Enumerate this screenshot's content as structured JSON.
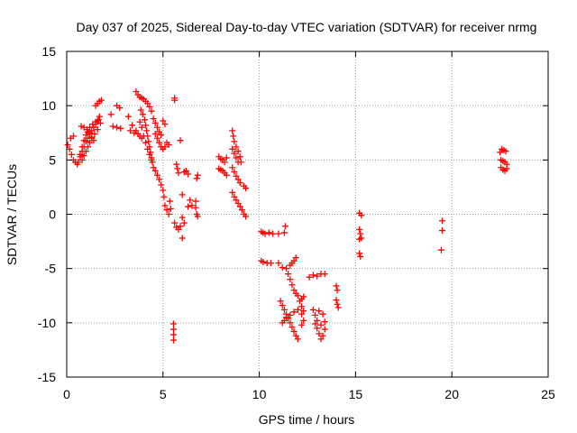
{
  "chart_data": {
    "type": "scatter",
    "title": "Day 037 of 2025, Sidereal Day-to-day VTEC variation (SDTVAR) for receiver nrmg",
    "xlabel": "GPS time / hours",
    "ylabel": "SDTVAR / TECUs",
    "xlim": [
      0,
      25
    ],
    "ylim": [
      -15,
      15
    ],
    "xticks": [
      0,
      5,
      10,
      15,
      20,
      25
    ],
    "yticks": [
      -15,
      -10,
      -5,
      0,
      5,
      10,
      15
    ],
    "xtick_labels": [
      "0",
      "5",
      "10",
      "15",
      "20",
      "25"
    ],
    "ytick_labels": [
      "-15",
      "-10",
      "-5",
      "0",
      "5",
      "10",
      "15"
    ],
    "grid": true,
    "marker": "plus",
    "color": "#ff0000",
    "points": [
      [
        0.05,
        6.4
      ],
      [
        0.15,
        6.0
      ],
      [
        0.25,
        5.5
      ],
      [
        0.35,
        5.0
      ],
      [
        0.45,
        4.8
      ],
      [
        0.55,
        4.6
      ],
      [
        0.2,
        7.0
      ],
      [
        0.35,
        7.2
      ],
      [
        0.6,
        4.8
      ],
      [
        0.7,
        5.3
      ],
      [
        0.8,
        5.8
      ],
      [
        0.9,
        6.2
      ],
      [
        1.0,
        6.7
      ],
      [
        1.1,
        7.0
      ],
      [
        1.2,
        7.4
      ],
      [
        1.3,
        7.7
      ],
      [
        1.4,
        8.0
      ],
      [
        1.5,
        8.3
      ],
      [
        1.6,
        8.6
      ],
      [
        1.7,
        9.0
      ],
      [
        0.7,
        5.5
      ],
      [
        0.8,
        6.2
      ],
      [
        0.9,
        6.8
      ],
      [
        1.0,
        7.3
      ],
      [
        1.1,
        7.6
      ],
      [
        1.2,
        8.0
      ],
      [
        1.35,
        8.3
      ],
      [
        1.5,
        8.5
      ],
      [
        1.65,
        8.7
      ],
      [
        1.75,
        8.4
      ],
      [
        0.8,
        5.0
      ],
      [
        0.9,
        5.4
      ],
      [
        1.0,
        5.8
      ],
      [
        1.1,
        6.2
      ],
      [
        1.2,
        6.6
      ],
      [
        1.3,
        7.0
      ],
      [
        1.45,
        7.4
      ],
      [
        1.6,
        7.8
      ],
      [
        0.75,
        8.1
      ],
      [
        0.9,
        8.0
      ],
      [
        1.05,
        7.8
      ],
      [
        1.2,
        7.5
      ],
      [
        1.3,
        7.1
      ],
      [
        1.4,
        6.8
      ],
      [
        1.5,
        10.0
      ],
      [
        1.6,
        10.2
      ],
      [
        1.7,
        10.4
      ],
      [
        1.8,
        10.5
      ],
      [
        2.3,
        9.2
      ],
      [
        2.4,
        8.1
      ],
      [
        2.6,
        8.0
      ],
      [
        2.6,
        10.0
      ],
      [
        2.75,
        9.8
      ],
      [
        2.8,
        7.9
      ],
      [
        3.2,
        9.0
      ],
      [
        3.3,
        7.7
      ],
      [
        3.4,
        8.2
      ],
      [
        3.5,
        7.5
      ],
      [
        3.6,
        11.3
      ],
      [
        3.7,
        11.0
      ],
      [
        3.8,
        10.8
      ],
      [
        3.9,
        10.7
      ],
      [
        4.0,
        10.6
      ],
      [
        4.1,
        10.4
      ],
      [
        4.2,
        10.2
      ],
      [
        4.3,
        9.9
      ],
      [
        4.4,
        9.5
      ],
      [
        3.6,
        7.7
      ],
      [
        3.7,
        7.4
      ],
      [
        3.8,
        7.2
      ],
      [
        3.9,
        7.0
      ],
      [
        3.85,
        9.6
      ],
      [
        3.95,
        9.2
      ],
      [
        4.05,
        8.7
      ],
      [
        4.1,
        8.2
      ],
      [
        4.15,
        7.7
      ],
      [
        4.2,
        7.2
      ],
      [
        4.25,
        6.7
      ],
      [
        4.3,
        6.2
      ],
      [
        4.35,
        5.7
      ],
      [
        4.4,
        5.2
      ],
      [
        4.45,
        4.8
      ],
      [
        4.5,
        4.3
      ],
      [
        3.8,
        8.5
      ],
      [
        3.9,
        8.0
      ],
      [
        4.0,
        7.2
      ],
      [
        4.1,
        6.6
      ],
      [
        4.2,
        6.0
      ],
      [
        4.3,
        5.5
      ],
      [
        4.4,
        5.0
      ],
      [
        4.5,
        8.8
      ],
      [
        4.6,
        8.4
      ],
      [
        4.7,
        8.0
      ],
      [
        4.8,
        7.6
      ],
      [
        4.9,
        7.3
      ],
      [
        5.0,
        8.6
      ],
      [
        5.1,
        8.3
      ],
      [
        4.6,
        7.4
      ],
      [
        4.7,
        7.0
      ],
      [
        4.8,
        6.6
      ],
      [
        4.9,
        6.2
      ],
      [
        5.0,
        6.0
      ],
      [
        5.1,
        6.2
      ],
      [
        5.2,
        6.6
      ],
      [
        5.3,
        6.4
      ],
      [
        4.6,
        4.0
      ],
      [
        4.7,
        3.6
      ],
      [
        4.8,
        3.2
      ],
      [
        4.9,
        2.7
      ],
      [
        5.0,
        2.2
      ],
      [
        5.05,
        1.6
      ],
      [
        5.1,
        0.8
      ],
      [
        5.2,
        0.4
      ],
      [
        5.3,
        0.0
      ],
      [
        5.35,
        1.2
      ],
      [
        5.4,
        0.5
      ],
      [
        5.6,
        10.7
      ],
      [
        5.6,
        10.5
      ],
      [
        5.7,
        4.6
      ],
      [
        5.75,
        4.2
      ],
      [
        5.8,
        3.8
      ],
      [
        5.9,
        6.8
      ],
      [
        6.0,
        1.8
      ],
      [
        6.1,
        3.9
      ],
      [
        6.2,
        4.0
      ],
      [
        6.3,
        3.7
      ],
      [
        6.4,
        1.3
      ],
      [
        6.5,
        0.8
      ],
      [
        6.3,
        0.7
      ],
      [
        5.6,
        -0.8
      ],
      [
        5.7,
        -1.2
      ],
      [
        5.8,
        -1.4
      ],
      [
        5.9,
        -1.1
      ],
      [
        6.0,
        -0.3
      ],
      [
        6.1,
        -0.8
      ],
      [
        6.0,
        -2.2
      ],
      [
        6.8,
        3.6
      ],
      [
        6.75,
        3.3
      ],
      [
        6.7,
        1.2
      ],
      [
        6.7,
        0.6
      ],
      [
        6.75,
        0.0
      ],
      [
        6.8,
        -0.2
      ],
      [
        5.55,
        -10.1
      ],
      [
        5.55,
        -10.6
      ],
      [
        5.55,
        -11.1
      ],
      [
        5.55,
        -11.6
      ],
      [
        7.9,
        5.3
      ],
      [
        8.0,
        5.1
      ],
      [
        8.1,
        5.0
      ],
      [
        8.2,
        4.8
      ],
      [
        8.3,
        5.2
      ],
      [
        7.9,
        4.2
      ],
      [
        8.0,
        4.1
      ],
      [
        8.1,
        4.0
      ],
      [
        8.2,
        3.8
      ],
      [
        8.3,
        3.6
      ],
      [
        8.6,
        7.7
      ],
      [
        8.65,
        7.2
      ],
      [
        8.7,
        6.7
      ],
      [
        8.8,
        6.2
      ],
      [
        8.9,
        5.8
      ],
      [
        9.0,
        5.3
      ],
      [
        9.05,
        4.8
      ],
      [
        8.6,
        6.0
      ],
      [
        8.7,
        5.6
      ],
      [
        8.8,
        5.2
      ],
      [
        8.9,
        4.8
      ],
      [
        8.6,
        4.3
      ],
      [
        8.7,
        3.9
      ],
      [
        8.8,
        3.5
      ],
      [
        8.9,
        3.2
      ],
      [
        9.0,
        2.9
      ],
      [
        9.2,
        2.6
      ],
      [
        9.3,
        2.4
      ],
      [
        8.6,
        2.0
      ],
      [
        8.7,
        1.6
      ],
      [
        8.8,
        1.3
      ],
      [
        8.9,
        1.0
      ],
      [
        9.0,
        0.7
      ],
      [
        9.1,
        0.4
      ],
      [
        9.2,
        0.0
      ],
      [
        9.3,
        -0.2
      ],
      [
        10.1,
        -1.6
      ],
      [
        10.2,
        -1.7
      ],
      [
        10.3,
        -1.8
      ],
      [
        10.5,
        -1.7
      ],
      [
        10.7,
        -1.8
      ],
      [
        11.0,
        -1.8
      ],
      [
        11.3,
        -1.7
      ],
      [
        11.35,
        -1.1
      ],
      [
        10.1,
        -4.3
      ],
      [
        10.2,
        -4.4
      ],
      [
        10.4,
        -4.5
      ],
      [
        10.6,
        -4.5
      ],
      [
        11.0,
        -4.5
      ],
      [
        11.2,
        -4.9
      ],
      [
        11.4,
        -5.0
      ],
      [
        11.6,
        -4.7
      ],
      [
        11.7,
        -4.5
      ],
      [
        11.8,
        -4.3
      ],
      [
        11.9,
        -4.0
      ],
      [
        11.5,
        -5.5
      ],
      [
        11.6,
        -6.0
      ],
      [
        11.7,
        -6.5
      ],
      [
        11.8,
        -7.0
      ],
      [
        11.9,
        -7.3
      ],
      [
        12.0,
        -7.5
      ],
      [
        12.1,
        -8.0
      ],
      [
        12.2,
        -8.5
      ],
      [
        12.3,
        -8.9
      ],
      [
        12.2,
        -7.8
      ],
      [
        12.3,
        -7.6
      ],
      [
        11.1,
        -8.0
      ],
      [
        11.2,
        -8.4
      ],
      [
        11.3,
        -8.8
      ],
      [
        11.4,
        -9.2
      ],
      [
        11.5,
        -9.6
      ],
      [
        11.6,
        -10.0
      ],
      [
        11.7,
        -10.4
      ],
      [
        11.8,
        -10.8
      ],
      [
        11.9,
        -11.2
      ],
      [
        12.0,
        -11.5
      ],
      [
        11.2,
        -10.0
      ],
      [
        11.3,
        -9.8
      ],
      [
        11.4,
        -9.5
      ],
      [
        11.6,
        -9.3
      ],
      [
        11.8,
        -9.0
      ],
      [
        12.0,
        -8.8
      ],
      [
        12.2,
        -9.2
      ],
      [
        12.3,
        -9.8
      ],
      [
        12.2,
        -10.2
      ],
      [
        12.6,
        -5.8
      ],
      [
        12.8,
        -5.6
      ],
      [
        13.0,
        -5.7
      ],
      [
        13.2,
        -5.5
      ],
      [
        13.4,
        -5.5
      ],
      [
        12.8,
        -8.8
      ],
      [
        12.9,
        -9.3
      ],
      [
        13.0,
        -9.8
      ],
      [
        13.0,
        -10.5
      ],
      [
        13.1,
        -11.0
      ],
      [
        13.2,
        -11.5
      ],
      [
        13.3,
        -11.2
      ],
      [
        13.4,
        -10.6
      ],
      [
        13.4,
        -9.9
      ],
      [
        13.3,
        -9.2
      ],
      [
        13.1,
        -8.9
      ],
      [
        12.9,
        -10.1
      ],
      [
        13.2,
        -10.2
      ],
      [
        14.0,
        -6.6
      ],
      [
        14.05,
        -7.0
      ],
      [
        14.0,
        -7.9
      ],
      [
        14.05,
        -8.3
      ],
      [
        14.1,
        -8.6
      ],
      [
        15.2,
        0.1
      ],
      [
        15.3,
        -0.1
      ],
      [
        15.2,
        -1.4
      ],
      [
        15.25,
        -1.8
      ],
      [
        15.2,
        -2.3
      ],
      [
        15.3,
        -2.2
      ],
      [
        15.2,
        -3.6
      ],
      [
        15.25,
        -3.9
      ],
      [
        19.5,
        -0.6
      ],
      [
        19.5,
        -1.5
      ],
      [
        19.45,
        -3.3
      ],
      [
        22.5,
        5.7
      ],
      [
        22.6,
        6.0
      ],
      [
        22.7,
        5.9
      ],
      [
        22.8,
        5.8
      ],
      [
        22.55,
        5.0
      ],
      [
        22.65,
        4.9
      ],
      [
        22.75,
        4.8
      ],
      [
        22.85,
        4.6
      ],
      [
        22.55,
        4.3
      ],
      [
        22.65,
        4.1
      ],
      [
        22.75,
        4.0
      ],
      [
        22.85,
        4.2
      ]
    ]
  }
}
